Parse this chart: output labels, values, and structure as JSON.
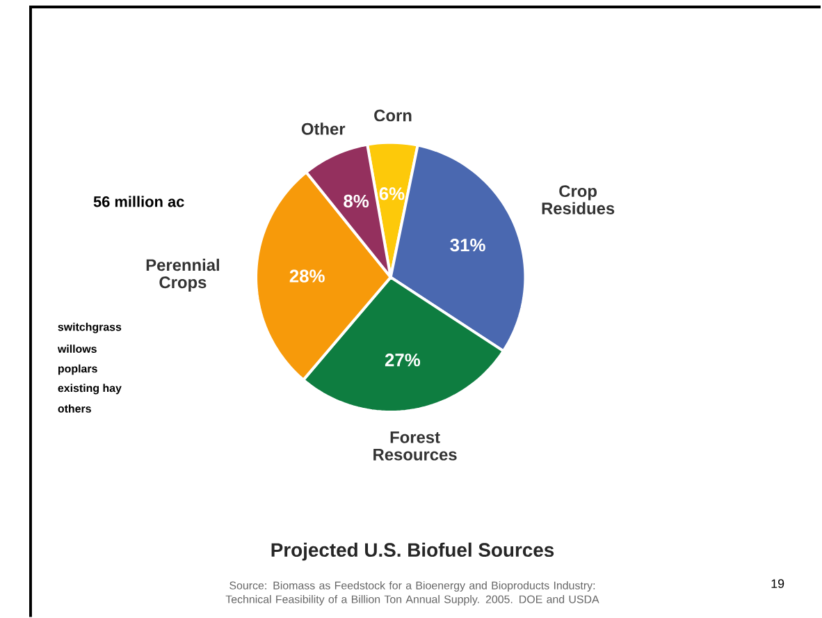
{
  "chart_data": {
    "type": "pie",
    "title": "Projected U.S. Biofuel Sources",
    "categories": [
      "Corn",
      "Crop Residues",
      "Forest Resources",
      "Perennial Crops",
      "Other"
    ],
    "values": [
      6,
      31,
      27,
      28,
      8
    ],
    "colors": [
      "#fdc90a",
      "#4a68b0",
      "#0e7d40",
      "#f79a0a",
      "#94305e"
    ],
    "value_labels": [
      "6%",
      "31%",
      "27%",
      "28%",
      "8%"
    ],
    "annotations": [
      "56 million ac",
      "switchgrass",
      "willows",
      "poplars",
      "existing hay",
      "others",
      "Source:  Biomass as Feedstock for a Bioenergy and Bioproducts Industry:  Technical Feasibility of a Billion Ton Annual Supply. 2005. DOE and USDA",
      "19"
    ]
  }
}
